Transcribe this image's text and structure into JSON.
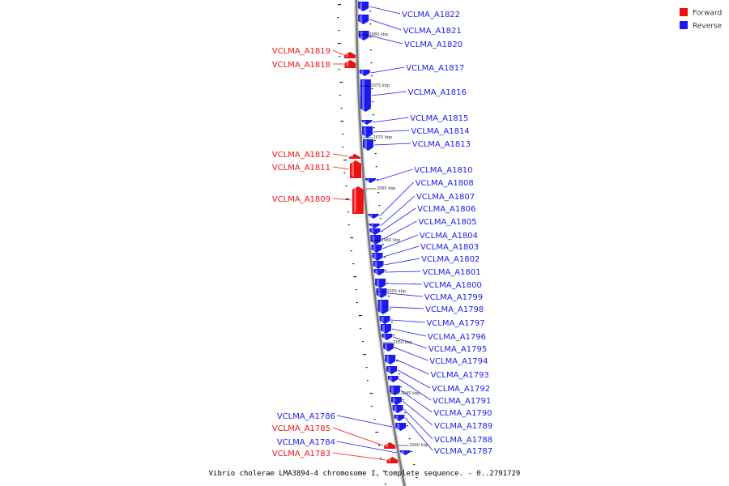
{
  "colors": {
    "forward": "#ee1111",
    "reverse": "#1a1aee",
    "backbone": "#888888",
    "leader_forward": "#ee1111",
    "leader_reverse": "#1a1aee"
  },
  "legend": [
    {
      "label": "Forward",
      "strand": "forward"
    },
    {
      "label": "Reverse",
      "strand": "reverse"
    }
  ],
  "caption": "Vibrio cholerae LMA3894-4 chromosome I, complete sequence. - 0..2791729",
  "kbp_ticks": [
    "2080 kbp",
    "2075 kbp",
    "2070 kbp",
    "2065 kbp",
    "2060 kbp",
    "2055 kbp",
    "2050 kbp",
    "2045 kbp",
    "2040 kbp"
  ],
  "genes": [
    {
      "name": "VCLMA_A1822",
      "strand": "reverse"
    },
    {
      "name": "VCLMA_A1821",
      "strand": "reverse"
    },
    {
      "name": "VCLMA_A1820",
      "strand": "reverse"
    },
    {
      "name": "VCLMA_A1819",
      "strand": "forward"
    },
    {
      "name": "VCLMA_A1818",
      "strand": "forward"
    },
    {
      "name": "VCLMA_A1817",
      "strand": "reverse"
    },
    {
      "name": "VCLMA_A1816",
      "strand": "reverse"
    },
    {
      "name": "VCLMA_A1815",
      "strand": "reverse"
    },
    {
      "name": "VCLMA_A1814",
      "strand": "reverse"
    },
    {
      "name": "VCLMA_A1813",
      "strand": "reverse"
    },
    {
      "name": "VCLMA_A1812",
      "strand": "forward"
    },
    {
      "name": "VCLMA_A1811",
      "strand": "forward"
    },
    {
      "name": "VCLMA_A1810",
      "strand": "reverse"
    },
    {
      "name": "VCLMA_A1809",
      "strand": "forward"
    },
    {
      "name": "VCLMA_A1808",
      "strand": "reverse"
    },
    {
      "name": "VCLMA_A1807",
      "strand": "reverse"
    },
    {
      "name": "VCLMA_A1806",
      "strand": "reverse"
    },
    {
      "name": "VCLMA_A1805",
      "strand": "reverse"
    },
    {
      "name": "VCLMA_A1804",
      "strand": "reverse"
    },
    {
      "name": "VCLMA_A1803",
      "strand": "reverse"
    },
    {
      "name": "VCLMA_A1802",
      "strand": "reverse"
    },
    {
      "name": "VCLMA_A1801",
      "strand": "reverse"
    },
    {
      "name": "VCLMA_A1800",
      "strand": "reverse"
    },
    {
      "name": "VCLMA_A1799",
      "strand": "reverse"
    },
    {
      "name": "VCLMA_A1798",
      "strand": "reverse"
    },
    {
      "name": "VCLMA_A1797",
      "strand": "reverse"
    },
    {
      "name": "VCLMA_A1796",
      "strand": "reverse"
    },
    {
      "name": "VCLMA_A1795",
      "strand": "reverse"
    },
    {
      "name": "VCLMA_A1794",
      "strand": "reverse"
    },
    {
      "name": "VCLMA_A1793",
      "strand": "reverse"
    },
    {
      "name": "VCLMA_A1792",
      "strand": "reverse"
    },
    {
      "name": "VCLMA_A1791",
      "strand": "reverse"
    },
    {
      "name": "VCLMA_A1790",
      "strand": "reverse"
    },
    {
      "name": "VCLMA_A1789",
      "strand": "reverse"
    },
    {
      "name": "VCLMA_A1788",
      "strand": "reverse"
    },
    {
      "name": "VCLMA_A1787",
      "strand": "reverse"
    },
    {
      "name": "VCLMA_A1786",
      "strand": "reverse"
    },
    {
      "name": "VCLMA_A1785",
      "strand": "forward"
    },
    {
      "name": "VCLMA_A1784",
      "strand": "reverse"
    },
    {
      "name": "VCLMA_A1783",
      "strand": "forward"
    }
  ]
}
